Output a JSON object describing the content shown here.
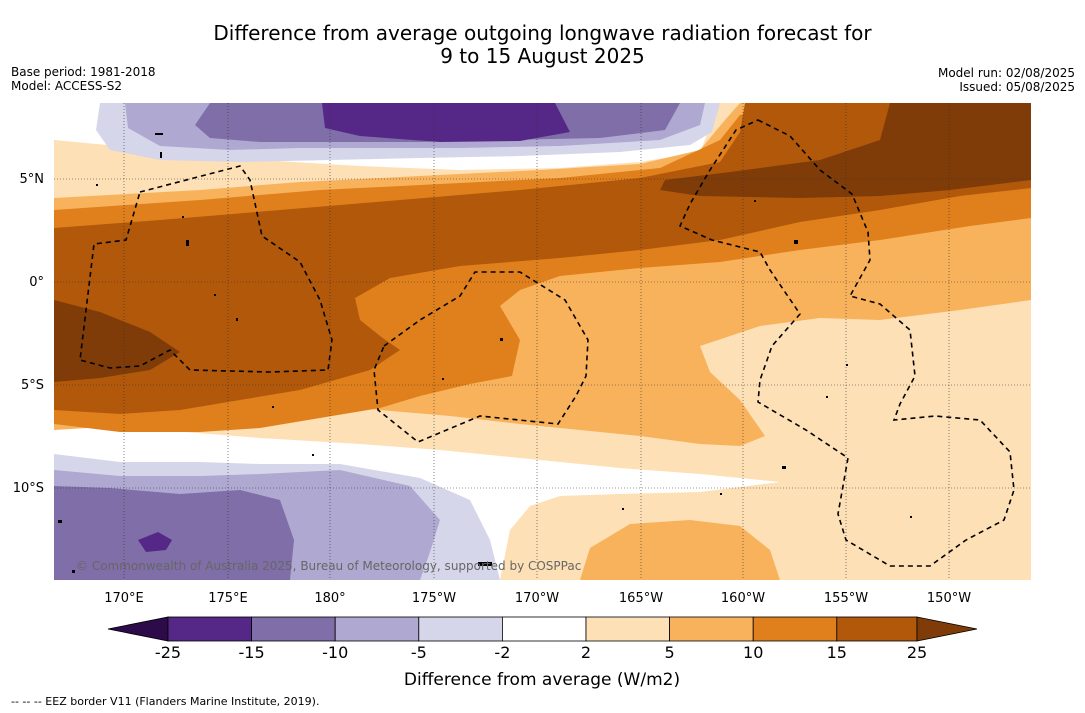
{
  "title": {
    "line1": "Difference from average outgoing longwave radiation forecast for",
    "line2": "9 to 15 August 2025"
  },
  "meta": {
    "base_period": "Base period: 1981-2018",
    "model": "Model: ACCESS-S2",
    "model_run": "Model run: 02/08/2025",
    "issued": "Issued: 05/08/2025"
  },
  "map": {
    "lon_labels": [
      "170°E",
      "175°E",
      "180°",
      "175°W",
      "170°W",
      "165°W",
      "160°W",
      "155°W",
      "150°W"
    ],
    "lat_labels": [
      "5°N",
      "0°",
      "5°S",
      "10°S"
    ],
    "copyright": "© Commonwealth of Australia 2025, Bureau of Meteorology, supported by COSPPac"
  },
  "colorbar": {
    "ticks": [
      "-25",
      "-15",
      "-10",
      "-5",
      "-2",
      "2",
      "5",
      "10",
      "15",
      "25"
    ],
    "colors": {
      "under": "#2d0a4a",
      "bins": [
        "#552887",
        "#7f6ea8",
        "#afa8d1",
        "#d6d6ea",
        "#ffffff",
        "#fde0b6",
        "#f9b25c",
        "#e0801c",
        "#b1580b"
      ],
      "over": "#7f3c08"
    },
    "label": "Difference from average (W/m2)"
  },
  "footnote": "-- -- -- EEZ border V11 (Flanders Marine Institute, 2019)."
}
